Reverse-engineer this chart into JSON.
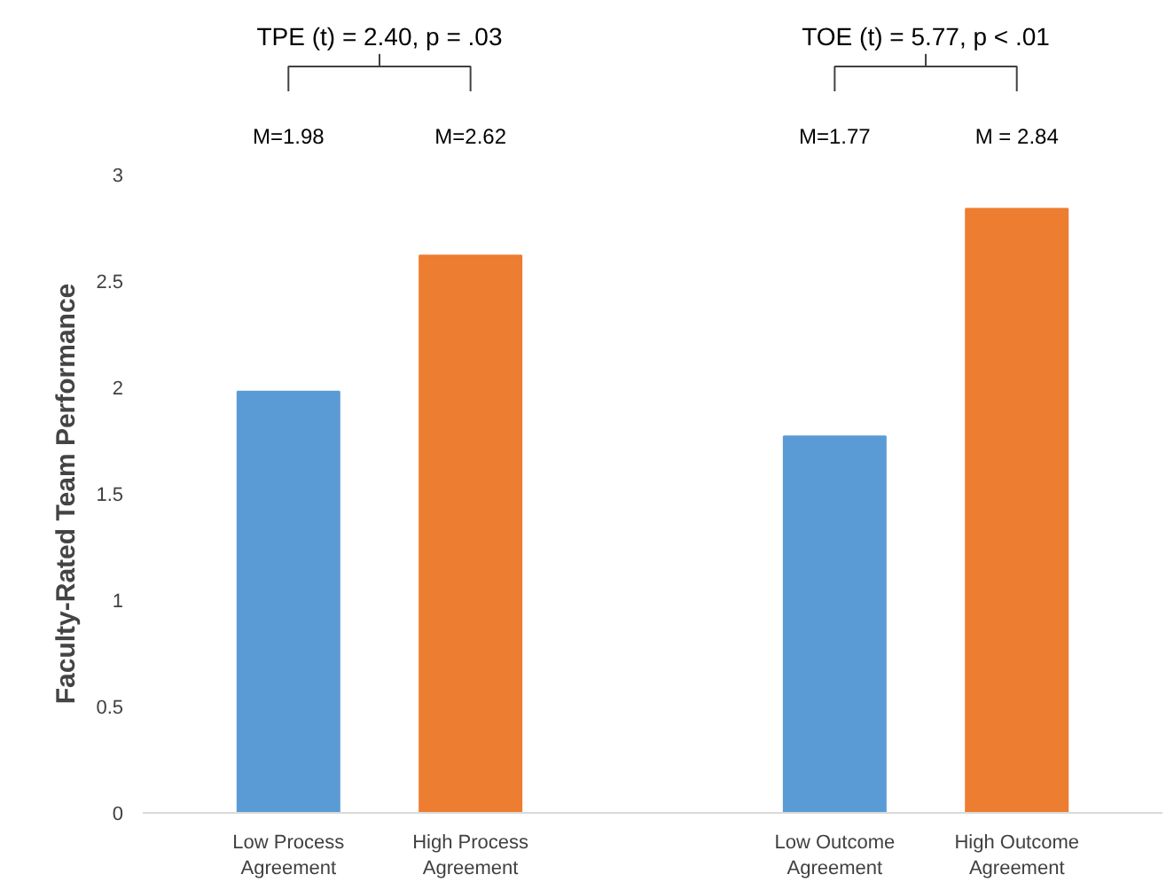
{
  "chart_data": {
    "type": "bar",
    "ylabel": "Faculty-Rated Team Performance",
    "categories": [
      "Low Process Agreement",
      "High Process Agreement",
      null,
      "Low Outcome Agreement",
      "High Outcome Agreement"
    ],
    "values": [
      1.98,
      2.62,
      null,
      1.77,
      2.84
    ],
    "colors": [
      "#5b9bd5",
      "#ed7d31",
      null,
      "#5b9bd5",
      "#ed7d31"
    ],
    "annotations": [
      "TPE (t) = 2.40, p = .03",
      "TOE (t) = 5.77, p < .01",
      "M=1.98",
      "M=2.62",
      "M=1.77",
      "M = 2.84"
    ],
    "ylim": [
      0,
      3
    ],
    "yticks": [
      0,
      0.5,
      1,
      1.5,
      2,
      2.5,
      3
    ],
    "grid": false
  }
}
